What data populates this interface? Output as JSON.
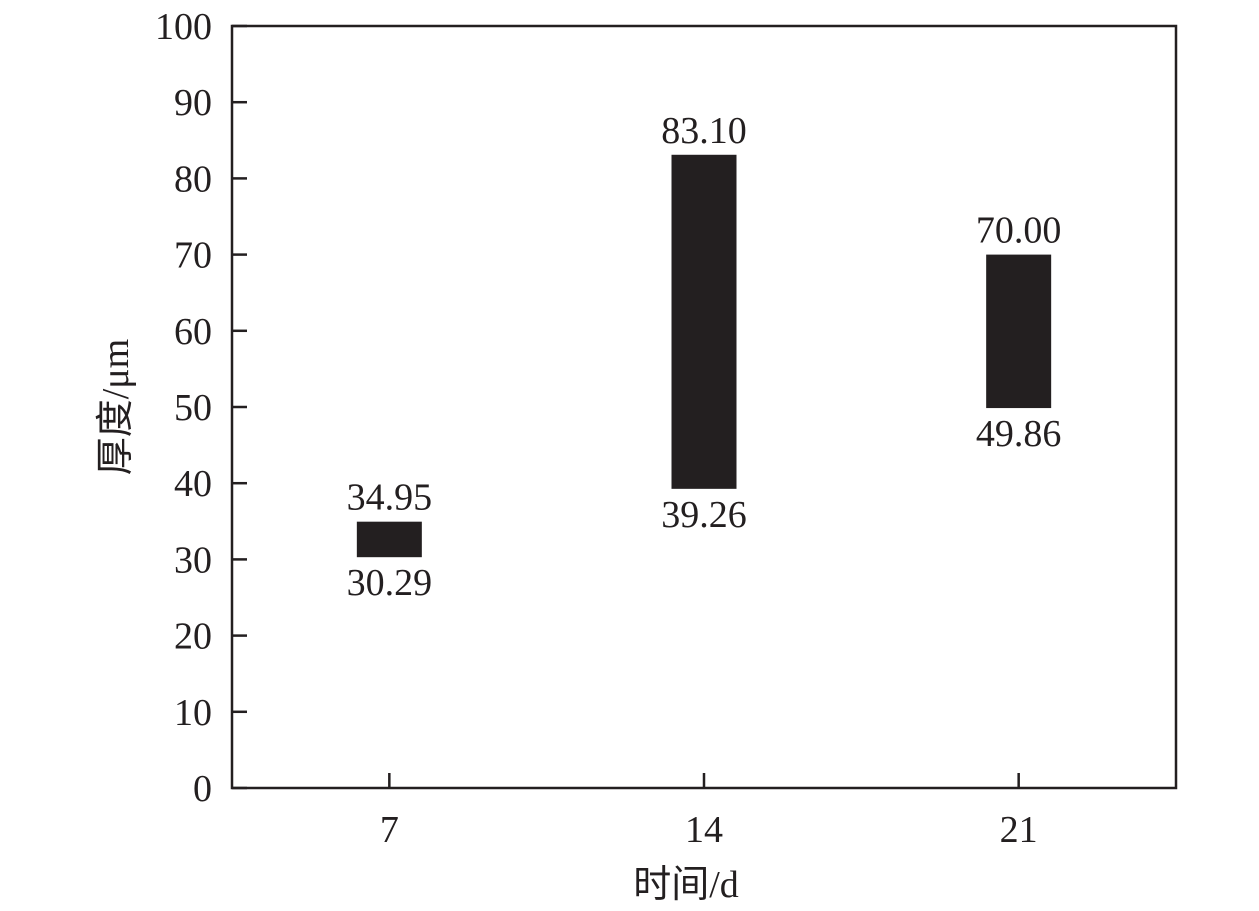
{
  "chart_data": {
    "type": "floating-bar",
    "categories": [
      "7",
      "14",
      "21"
    ],
    "series": [
      {
        "low": [
          30.29,
          39.26,
          49.86
        ],
        "high": [
          34.95,
          83.1,
          70.0
        ]
      }
    ],
    "low_labels": [
      "30.29",
      "39.26",
      "49.86"
    ],
    "high_labels": [
      "34.95",
      "83.10",
      "70.00"
    ],
    "xlabel": "时间/d",
    "ylabel": "厚度/μm",
    "ylim": [
      0,
      100
    ],
    "yticks": [
      0,
      10,
      20,
      30,
      40,
      50,
      60,
      70,
      80,
      90,
      100
    ],
    "grid": false,
    "bar_color": "#231f20"
  }
}
